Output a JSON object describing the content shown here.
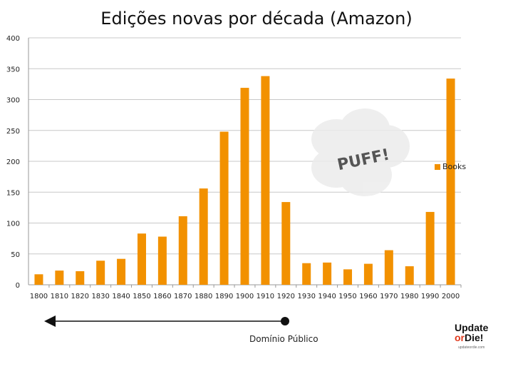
{
  "chart_data": {
    "type": "bar",
    "title": "Edições novas por década (Amazon)",
    "categories": [
      "1800",
      "1810",
      "1820",
      "1830",
      "1840",
      "1850",
      "1860",
      "1870",
      "1880",
      "1890",
      "1900",
      "1910",
      "1920",
      "1930",
      "1940",
      "1950",
      "1960",
      "1970",
      "1980",
      "1990",
      "2000"
    ],
    "series": [
      {
        "name": "Books",
        "values": [
          17,
          23,
          22,
          39,
          42,
          83,
          78,
          111,
          156,
          248,
          319,
          338,
          134,
          35,
          36,
          25,
          34,
          56,
          30,
          118,
          334
        ]
      }
    ],
    "yticks": [
      "0",
      "50",
      "100",
      "150",
      "200",
      "250",
      "300",
      "350",
      "400"
    ],
    "ylim": [
      0,
      400
    ],
    "xlabel": "",
    "ylabel": "",
    "grid": true,
    "legend": "right",
    "bar_color": "#f29100"
  },
  "annotations": {
    "puff": "PUFF!",
    "public_domain": "Domínio Público"
  },
  "logo": {
    "line1": "Update",
    "line2_or": "or",
    "line2": "Die!",
    "url": "updateordie.com"
  }
}
